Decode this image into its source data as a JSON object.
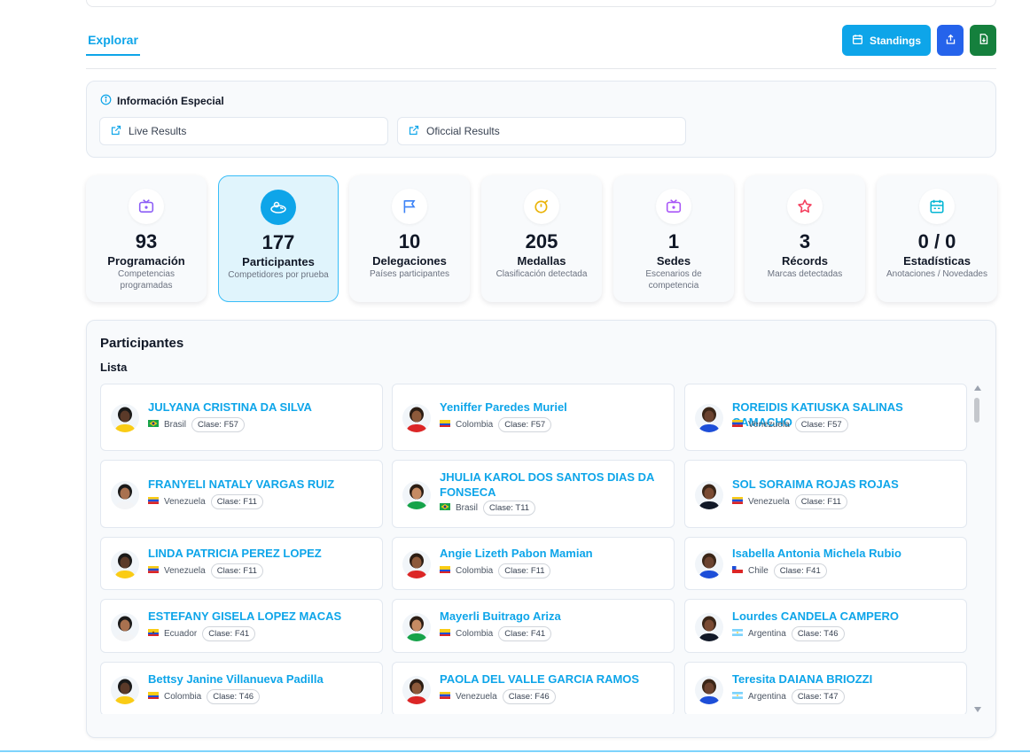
{
  "tabs": {
    "explorar": "Explorar"
  },
  "actions": {
    "standings_label": "Standings",
    "share_icon": "share-icon",
    "download_icon": "download-icon",
    "colors": {
      "standings": "#0ea5e9",
      "share": "#2563eb",
      "download": "#15803d"
    }
  },
  "info": {
    "title": "Información Especial",
    "links": [
      {
        "label": "Live Results",
        "icon": "external-link-icon"
      },
      {
        "label": "Oficcial Results",
        "icon": "external-link-icon"
      }
    ]
  },
  "stats": [
    {
      "value": "93",
      "label": "Programación",
      "desc": "Competencias programadas",
      "icon": "tv-icon",
      "icon_color": "#8b5cf6",
      "active": false
    },
    {
      "value": "177",
      "label": "Participantes",
      "desc": "Competidores por prueba",
      "icon": "runner-icon",
      "icon_color": "#ffffff",
      "active": true
    },
    {
      "value": "10",
      "label": "Delegaciones",
      "desc": "Países participantes",
      "icon": "flag-icon",
      "icon_color": "#3b82f6",
      "active": false
    },
    {
      "value": "205",
      "label": "Medallas",
      "desc": "Clasificación detectada",
      "icon": "medal-icon",
      "icon_color": "#eab308",
      "active": false
    },
    {
      "value": "1",
      "label": "Sedes",
      "desc": "Escenarios de competencia",
      "icon": "venue-icon",
      "icon_color": "#a855f7",
      "active": false
    },
    {
      "value": "3",
      "label": "Récords",
      "desc": "Marcas detectadas",
      "icon": "star-icon",
      "icon_color": "#f43f5e",
      "active": false
    },
    {
      "value": "0 / 0",
      "label": "Estadísticas",
      "desc": "Anotaciones / Novedades",
      "icon": "calendar-stats-icon",
      "icon_color": "#06b6d4",
      "active": false
    }
  ],
  "participants": {
    "title": "Participantes",
    "subtitle": "Lista",
    "items": [
      {
        "name": "JULYANA CRISTINA DA SILVA",
        "country": "Brasil",
        "class": "Clase: F57",
        "flag": "brasil"
      },
      {
        "name": "Yeniffer Paredes Muriel",
        "country": "Colombia",
        "class": "Clase: F57",
        "flag": "colombia"
      },
      {
        "name": "ROREIDIS KATIUSKA SALINAS CAMACHO",
        "country": "Venezuela",
        "class": "Clase: F57",
        "flag": "venezuela"
      },
      {
        "name": "FRANYELI NATALY VARGAS RUIZ",
        "country": "Venezuela",
        "class": "Clase: F11",
        "flag": "venezuela"
      },
      {
        "name": "JHULIA KAROL DOS SANTOS DIAS DA FONSECA",
        "country": "Brasil",
        "class": "Clase: T11",
        "flag": "brasil"
      },
      {
        "name": "SOL SORAIMA ROJAS ROJAS",
        "country": "Venezuela",
        "class": "Clase: F11",
        "flag": "venezuela"
      },
      {
        "name": "LINDA PATRICIA PEREZ LOPEZ",
        "country": "Venezuela",
        "class": "Clase: F11",
        "flag": "venezuela"
      },
      {
        "name": "Angie Lizeth Pabon Mamian",
        "country": "Colombia",
        "class": "Clase: F11",
        "flag": "colombia"
      },
      {
        "name": "Isabella Antonia Michela Rubio",
        "country": "Chile",
        "class": "Clase: F41",
        "flag": "chile"
      },
      {
        "name": "ESTEFANY GISELA LOPEZ MACAS",
        "country": "Ecuador",
        "class": "Clase: F41",
        "flag": "ecuador"
      },
      {
        "name": "Mayerli Buitrago Ariza",
        "country": "Colombia",
        "class": "Clase: F41",
        "flag": "colombia"
      },
      {
        "name": "Lourdes CANDELA CAMPERO",
        "country": "Argentina",
        "class": "Clase: T46",
        "flag": "argentina"
      },
      {
        "name": "Bettsy Janine Villanueva Padilla",
        "country": "Colombia",
        "class": "Clase: T46",
        "flag": "colombia"
      },
      {
        "name": "PAOLA DEL VALLE GARCIA RAMOS",
        "country": "Venezuela",
        "class": "Clase: F46",
        "flag": "venezuela"
      },
      {
        "name": "Teresita DAIANA BRIOZZI",
        "country": "Argentina",
        "class": "Clase: T47",
        "flag": "argentina"
      }
    ]
  }
}
